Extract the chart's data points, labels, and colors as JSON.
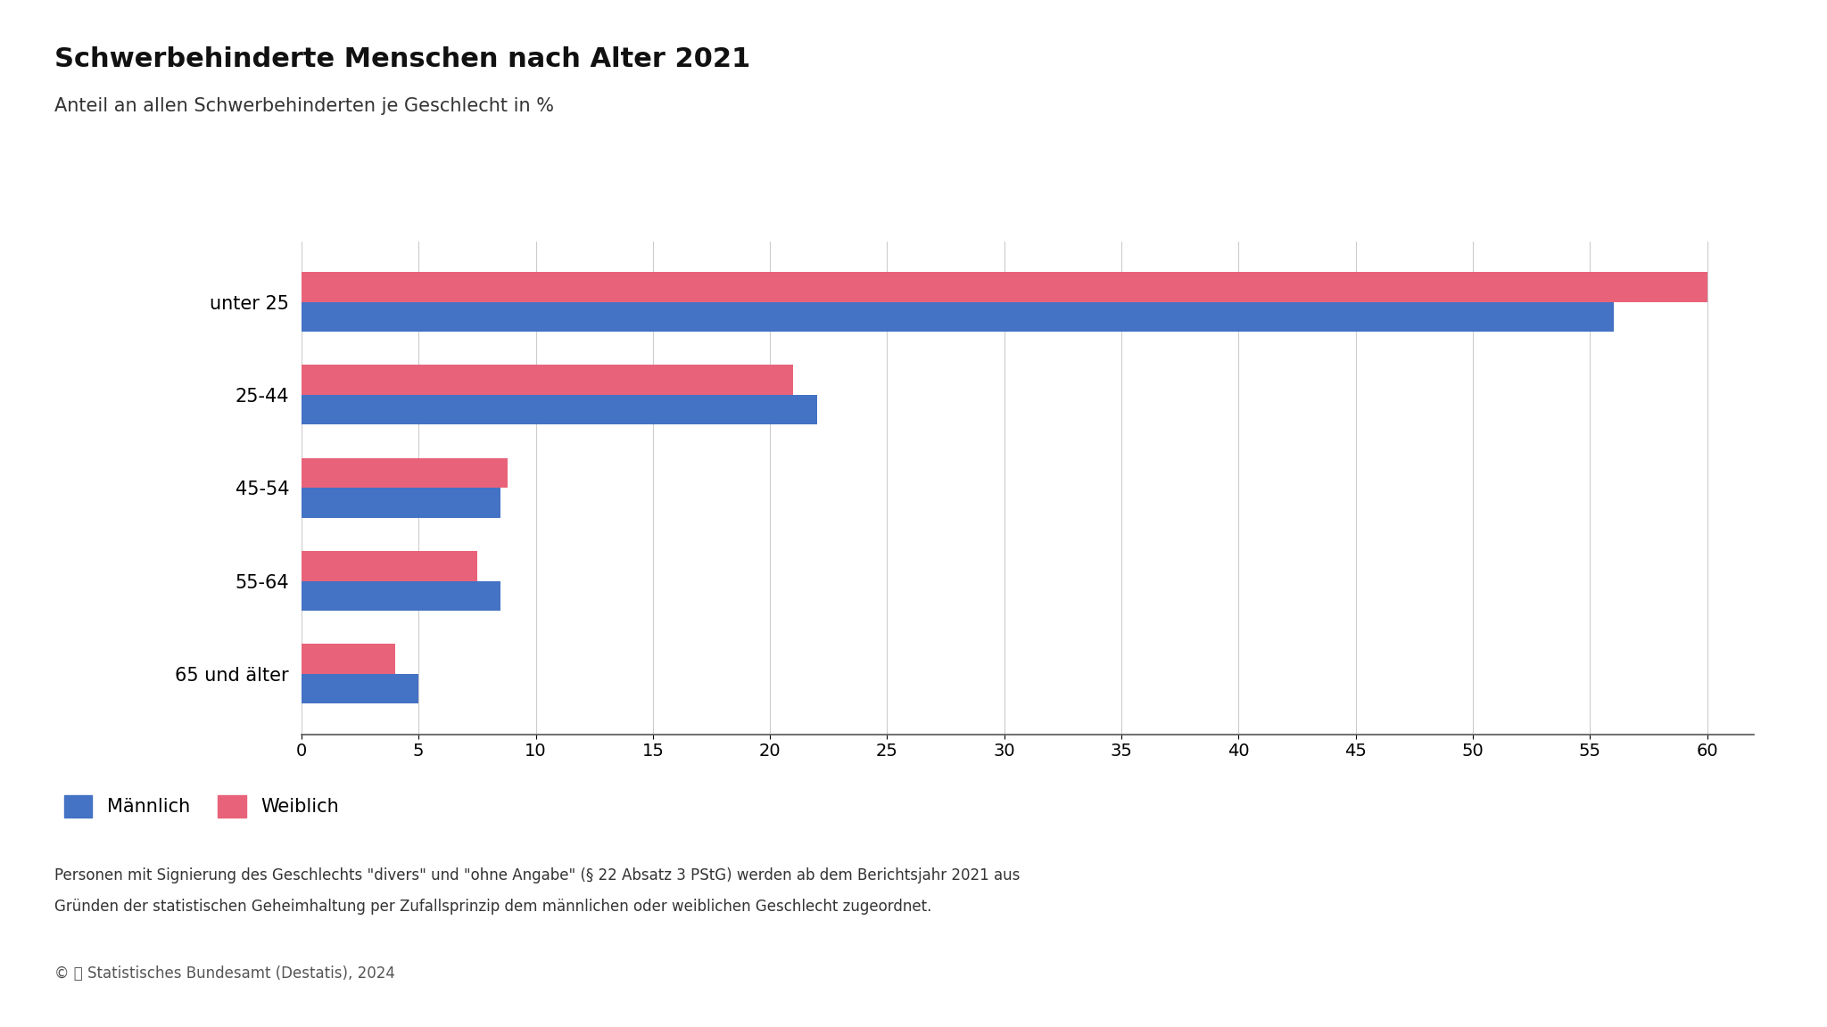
{
  "title": "Schwerbehinderte Menschen nach Alter 2021",
  "subtitle": "Anteil an allen Schwerbehinderten je Geschlecht in %",
  "categories": [
    "65 und älter",
    "55-64",
    "45-54",
    "25-44",
    "unter 25"
  ],
  "maennlich": [
    56.0,
    22.0,
    8.5,
    8.5,
    5.0
  ],
  "weiblich": [
    60.0,
    21.0,
    8.8,
    7.5,
    4.0
  ],
  "color_maennlich": "#4472C4",
  "color_weiblich": "#E8637A",
  "xlim": [
    0,
    62
  ],
  "xticks": [
    0,
    5,
    10,
    15,
    20,
    25,
    30,
    35,
    40,
    45,
    50,
    55,
    60
  ],
  "legend_maennlich": "Männlich",
  "legend_weiblich": "Weiblich",
  "footnote_line1": "Personen mit Signierung des Geschlechts \"divers\" und \"ohne Angabe\" (§ 22 Absatz 3 PStG) werden ab dem Berichtsjahr 2021 aus",
  "footnote_line2": "Gründen der statistischen Geheimhaltung per Zufallsprinzip dem männlichen oder weiblichen Geschlecht zugeordnet.",
  "copyright": "© 📊 Statistisches Bundesamt (Destatis), 2024",
  "bg_color": "#FFFFFF",
  "grid_color": "#CCCCCC",
  "bar_height": 0.32,
  "title_fontsize": 22,
  "subtitle_fontsize": 15,
  "tick_fontsize": 14,
  "label_fontsize": 15,
  "legend_fontsize": 15,
  "footnote_fontsize": 12,
  "copyright_fontsize": 12
}
